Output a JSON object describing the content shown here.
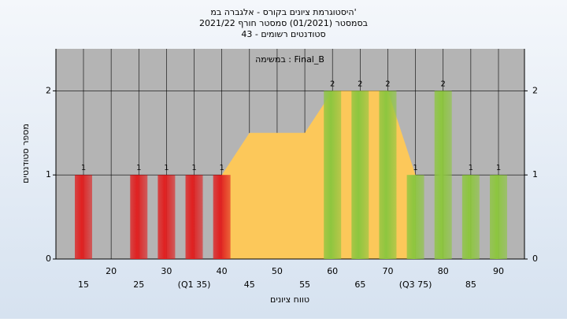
{
  "chart_data": {
    "type": "bar",
    "title": [
      "היסטוגרמת ציונים בקורס - אלגברה במ'",
      "בסמסטר  (01/2021)  סמסטר חורף 2021/22",
      "סטודנטים רשומים - 43"
    ],
    "annotation": "במשימה : Final_B",
    "y_label": "מספר סטודנטים",
    "x_label": "טווח ציונים",
    "categories": [
      "15",
      "20",
      "25",
      "30",
      "(Q1 35)",
      "40",
      "45",
      "50",
      "55",
      "60",
      "65",
      "70",
      "(Q3 75)",
      "80",
      "85",
      "90"
    ],
    "values": [
      1,
      0,
      1,
      1,
      1,
      1,
      0,
      0,
      0,
      2,
      2,
      2,
      1,
      2,
      1,
      1
    ],
    "colors": [
      "#e02020",
      "#e02020",
      "#e02020",
      "#e02020",
      "#e02020",
      "#e02020",
      "#e02020",
      "#e02020",
      "#e02020",
      "#8dc63f",
      "#8dc63f",
      "#8dc63f",
      "#8dc63f",
      "#8dc63f",
      "#8dc63f",
      "#8dc63f"
    ],
    "area": {
      "color": "#fcc85a",
      "values": [
        null,
        null,
        null,
        null,
        null,
        1,
        1.5,
        1.5,
        1.5,
        2,
        2,
        2,
        1,
        null,
        null,
        null
      ]
    },
    "ylim": [
      0,
      2.5
    ],
    "yticks": [
      0,
      1,
      2
    ],
    "grid": true
  }
}
